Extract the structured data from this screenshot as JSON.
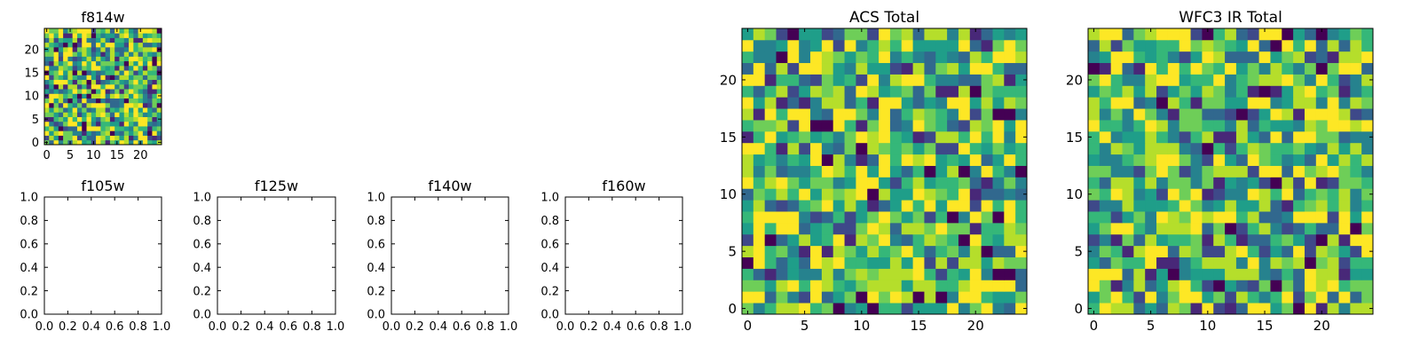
{
  "colors": {
    "viridis": [
      "#440154",
      "#482878",
      "#3e4989",
      "#31688e",
      "#26828e",
      "#1f9e89",
      "#35b779",
      "#6ece58",
      "#b5de2b",
      "#fde725"
    ],
    "axis": "#000000",
    "background": "#ffffff"
  },
  "chart_data": [
    {
      "type": "heatmap",
      "title": "f814w",
      "size": 25,
      "xticks": [
        0,
        5,
        10,
        15,
        20
      ],
      "yticks": [
        0,
        5,
        10,
        15,
        20
      ],
      "colormap": "viridis",
      "seed": 814,
      "note_values": "random noise image, values 0–1 estimated"
    },
    {
      "type": "scatter",
      "title": "f105w",
      "xlim": [
        0.0,
        1.0
      ],
      "ylim": [
        0.0,
        1.0
      ],
      "xticks": [
        "0.0",
        "0.2",
        "0.4",
        "0.6",
        "0.8",
        "1.0"
      ],
      "yticks": [
        "0.0",
        "0.2",
        "0.4",
        "0.6",
        "0.8",
        "1.0"
      ],
      "series": []
    },
    {
      "type": "scatter",
      "title": "f125w",
      "xlim": [
        0.0,
        1.0
      ],
      "ylim": [
        0.0,
        1.0
      ],
      "xticks": [
        "0.0",
        "0.2",
        "0.4",
        "0.6",
        "0.8",
        "1.0"
      ],
      "yticks": [
        "0.0",
        "0.2",
        "0.4",
        "0.6",
        "0.8",
        "1.0"
      ],
      "series": []
    },
    {
      "type": "scatter",
      "title": "f140w",
      "xlim": [
        0.0,
        1.0
      ],
      "ylim": [
        0.0,
        1.0
      ],
      "xticks": [
        "0.0",
        "0.2",
        "0.4",
        "0.6",
        "0.8",
        "1.0"
      ],
      "yticks": [
        "0.0",
        "0.2",
        "0.4",
        "0.6",
        "0.8",
        "1.0"
      ],
      "series": []
    },
    {
      "type": "scatter",
      "title": "f160w",
      "xlim": [
        0.0,
        1.0
      ],
      "ylim": [
        0.0,
        1.0
      ],
      "xticks": [
        "0.0",
        "0.2",
        "0.4",
        "0.6",
        "0.8",
        "1.0"
      ],
      "yticks": [
        "0.0",
        "0.2",
        "0.4",
        "0.6",
        "0.8",
        "1.0"
      ],
      "series": []
    },
    {
      "type": "heatmap",
      "title": "ACS Total",
      "size": 25,
      "xticks": [
        0,
        5,
        10,
        15,
        20
      ],
      "yticks": [
        0,
        5,
        10,
        15,
        20
      ],
      "colormap": "viridis",
      "seed": 1001
    },
    {
      "type": "heatmap",
      "title": "WFC3 IR Total",
      "size": 25,
      "xticks": [
        0,
        5,
        10,
        15,
        20
      ],
      "yticks": [
        0,
        5,
        10,
        15,
        20
      ],
      "colormap": "viridis",
      "seed": 3003
    }
  ]
}
